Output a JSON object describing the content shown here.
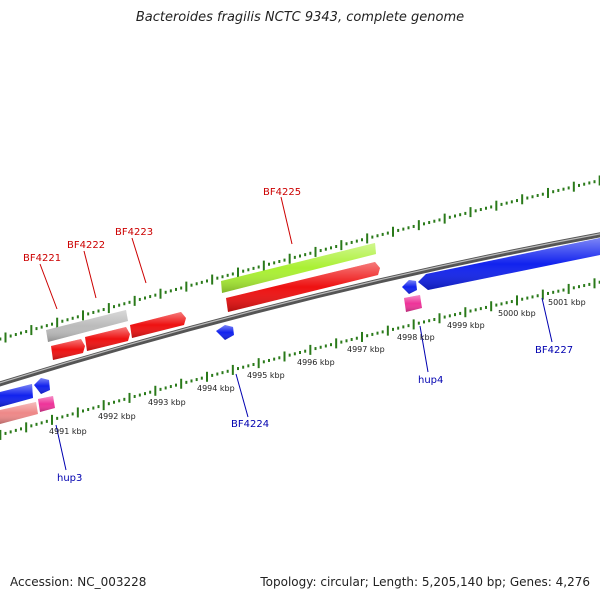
{
  "title": "Bacteroides fragilis NCTC 9343, complete genome",
  "footer": {
    "accession": "Accession: NC_003228",
    "summary": "Topology: circular; Length: 5,205,140 bp; Genes: 4,276"
  },
  "colors": {
    "backbone": "#777777",
    "ticks": "#2a7a1a",
    "top_label": "#cc0000",
    "bottom_label": "#0000b0",
    "gene_red": "#ee1111",
    "gene_green": "#aaf033",
    "gene_grey": "#bbbbbb",
    "gene_blue": "#1122ee",
    "gene_pink": "#ee3399",
    "gene_salmon": "#ee8888"
  },
  "kbp_labels": [
    "4991 kbp",
    "4992 kbp",
    "4993 kbp",
    "4994 kbp",
    "4995 kbp",
    "4996 kbp",
    "4997 kbp",
    "4998 kbp",
    "4999 kbp",
    "5000 kbp",
    "5001 kbp"
  ],
  "top_labels": [
    "BF4221",
    "BF4222",
    "BF4223",
    "BF4225"
  ],
  "bottom_labels": [
    "hup3",
    "BF4224",
    "hup4",
    "BF4227"
  ]
}
